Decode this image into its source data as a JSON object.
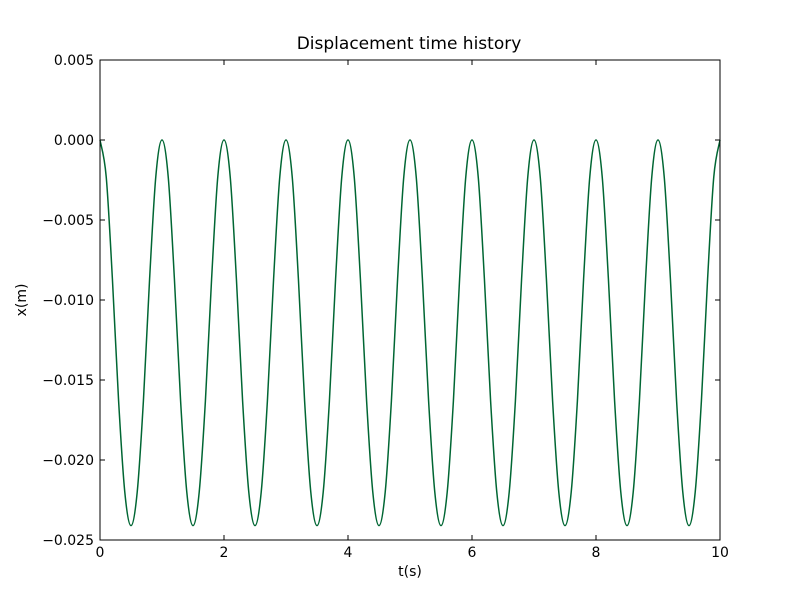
{
  "chart_data": {
    "type": "line",
    "title": "Displacement time history",
    "xlabel": "t(s)",
    "ylabel": "x(m)",
    "xlim": [
      0,
      10
    ],
    "ylim": [
      -0.025,
      0.005
    ],
    "xticks": [
      0,
      2,
      4,
      6,
      8,
      10
    ],
    "xtick_labels": [
      "0",
      "2",
      "4",
      "6",
      "8",
      "10"
    ],
    "yticks": [
      0.005,
      0.0,
      -0.005,
      -0.01,
      -0.015,
      -0.02,
      -0.025
    ],
    "ytick_labels": [
      "0.005",
      "0.000",
      "−0.005",
      "−0.010",
      "−0.015",
      "−0.020",
      "−0.025"
    ],
    "grid": false,
    "legend": "none",
    "series": [
      {
        "color": "#006633",
        "x": [
          0.0,
          0.1,
          0.2,
          0.3,
          0.4,
          0.5,
          0.6,
          0.7,
          0.8,
          0.9,
          1.0,
          1.1,
          1.2,
          1.3,
          1.4,
          1.5,
          1.6,
          1.7,
          1.8,
          1.9,
          2.0,
          2.1,
          2.2,
          2.3,
          2.4,
          2.5,
          2.6,
          2.7,
          2.8,
          2.9,
          3.0,
          3.1,
          3.2,
          3.3,
          3.4,
          3.5,
          3.6,
          3.7,
          3.8,
          3.9,
          4.0,
          4.1,
          4.2,
          4.3,
          4.4,
          4.5,
          4.6,
          4.7,
          4.8,
          4.9,
          5.0,
          5.1,
          5.2,
          5.3,
          5.4,
          5.5,
          5.6,
          5.7,
          5.8,
          5.9,
          6.0,
          6.1,
          6.2,
          6.3,
          6.4,
          6.5,
          6.6,
          6.7,
          6.8,
          6.9,
          7.0,
          7.1,
          7.2,
          7.3,
          7.4,
          7.5,
          7.6,
          7.7,
          7.8,
          7.9,
          8.0,
          8.1,
          8.2,
          8.3,
          8.4,
          8.5,
          8.6,
          8.7,
          8.8,
          8.9,
          9.0,
          9.1,
          9.2,
          9.3,
          9.4,
          9.5,
          9.6,
          9.7,
          9.8,
          9.9,
          10.0
        ],
        "y": [
          0.0,
          -0.00229,
          -0.00868,
          -0.01631,
          -0.02201,
          -0.0241,
          -0.02201,
          -0.01631,
          -0.00868,
          -0.00229,
          0.0,
          -0.00229,
          -0.00868,
          -0.01631,
          -0.02201,
          -0.0241,
          -0.02201,
          -0.01631,
          -0.00868,
          -0.00229,
          0.0,
          -0.00229,
          -0.00868,
          -0.01631,
          -0.02201,
          -0.0241,
          -0.02201,
          -0.01631,
          -0.00868,
          -0.00229,
          0.0,
          -0.00229,
          -0.00868,
          -0.01631,
          -0.02201,
          -0.0241,
          -0.02201,
          -0.01631,
          -0.00868,
          -0.00229,
          0.0,
          -0.00229,
          -0.00868,
          -0.01631,
          -0.02201,
          -0.0241,
          -0.02201,
          -0.01631,
          -0.00868,
          -0.00229,
          0.0,
          -0.00229,
          -0.00868,
          -0.01631,
          -0.02201,
          -0.0241,
          -0.02201,
          -0.01631,
          -0.00868,
          -0.00229,
          0.0,
          -0.00229,
          -0.00868,
          -0.01631,
          -0.02201,
          -0.0241,
          -0.02201,
          -0.01631,
          -0.00868,
          -0.00229,
          0.0,
          -0.00229,
          -0.00868,
          -0.01631,
          -0.02201,
          -0.0241,
          -0.02201,
          -0.01631,
          -0.00868,
          -0.00229,
          0.0,
          -0.00229,
          -0.00868,
          -0.01631,
          -0.02201,
          -0.0241,
          -0.02201,
          -0.01631,
          -0.00868,
          -0.00229,
          0.0,
          -0.00229,
          -0.00868,
          -0.01631,
          -0.02201,
          -0.0241,
          -0.02201,
          -0.01631,
          -0.00868,
          -0.00229,
          0.0
        ]
      }
    ]
  }
}
